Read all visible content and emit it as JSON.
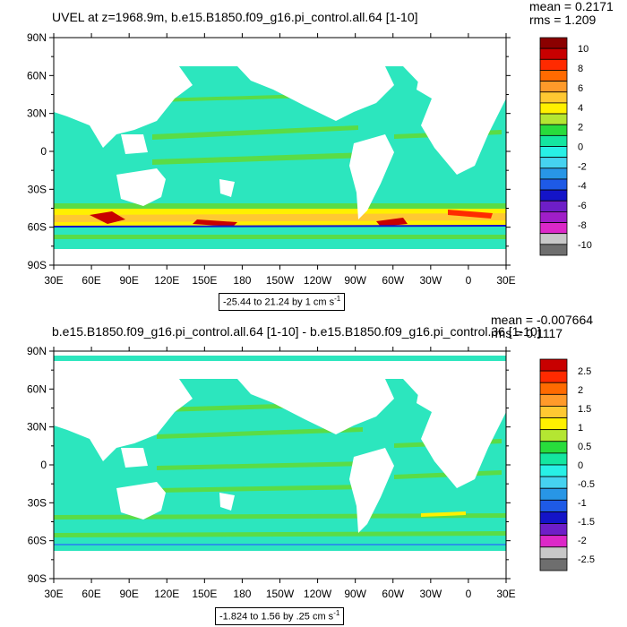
{
  "chart_data": [
    {
      "type": "heatmap",
      "title": "UVEL at z=1968.9m, b.e15.B1850.f09_g16.pi_control.all.64 [1-10]",
      "stats": {
        "mean": "mean = 0.2171",
        "rms": "rms = 1.209"
      },
      "x_ticks": [
        "30E",
        "60E",
        "90E",
        "120E",
        "150E",
        "180",
        "150W",
        "120W",
        "90W",
        "60W",
        "30W",
        "0",
        "30E"
      ],
      "y_ticks": [
        "90N",
        "60N",
        "30N",
        "0",
        "30S",
        "60S",
        "90S"
      ],
      "colorbar": {
        "labels": [
          "10",
          "8",
          "6",
          "4",
          "2",
          "0",
          "-2",
          "-4",
          "-6",
          "-8",
          "-10"
        ],
        "colors": [
          "#8B0000",
          "#C80000",
          "#FF2A00",
          "#FF6A00",
          "#FF9A2A",
          "#FFC832",
          "#FFF000",
          "#B4E632",
          "#28DC3C",
          "#14E6A0",
          "#28F0E6",
          "#46D2F0",
          "#2896E6",
          "#1E5AE6",
          "#1414C8",
          "#6E1EC8",
          "#A01EC8",
          "#DC28C8",
          "#C8C8C8",
          "#6E6E6E"
        ]
      },
      "range_label": "-25.44 to 21.24 by 1 cm s",
      "units_superscript": "-1"
    },
    {
      "type": "heatmap",
      "title": "b.e15.B1850.f09_g16.pi_control.all.64 [1-10] - b.e15.B1850.f09_g16.pi_control.36 [1-10]",
      "stats": {
        "mean": "mean = -0.007664",
        "rms": "rms = 0.1117"
      },
      "x_ticks": [
        "30E",
        "60E",
        "90E",
        "120E",
        "150E",
        "180",
        "150W",
        "120W",
        "90W",
        "60W",
        "30W",
        "0",
        "30E"
      ],
      "y_ticks": [
        "90N",
        "60N",
        "30N",
        "0",
        "30S",
        "60S",
        "90S"
      ],
      "colorbar": {
        "labels": [
          "2.5",
          "2",
          "1.5",
          "1",
          "0.5",
          "0",
          "-0.5",
          "-1",
          "-1.5",
          "-2",
          "-2.5"
        ],
        "colors": [
          "#C80000",
          "#FF2A00",
          "#FF6A00",
          "#FF9A2A",
          "#FFC832",
          "#FFF000",
          "#B4E632",
          "#28DC3C",
          "#14E6A0",
          "#28F0E6",
          "#46D2F0",
          "#2896E6",
          "#1E5AE6",
          "#1414C8",
          "#6E1EC8",
          "#DC28C8",
          "#C8C8C8",
          "#6E6E6E"
        ]
      },
      "range_label": "-1.824 to 1.56 by .25 cm s",
      "units_superscript": "-1"
    }
  ]
}
